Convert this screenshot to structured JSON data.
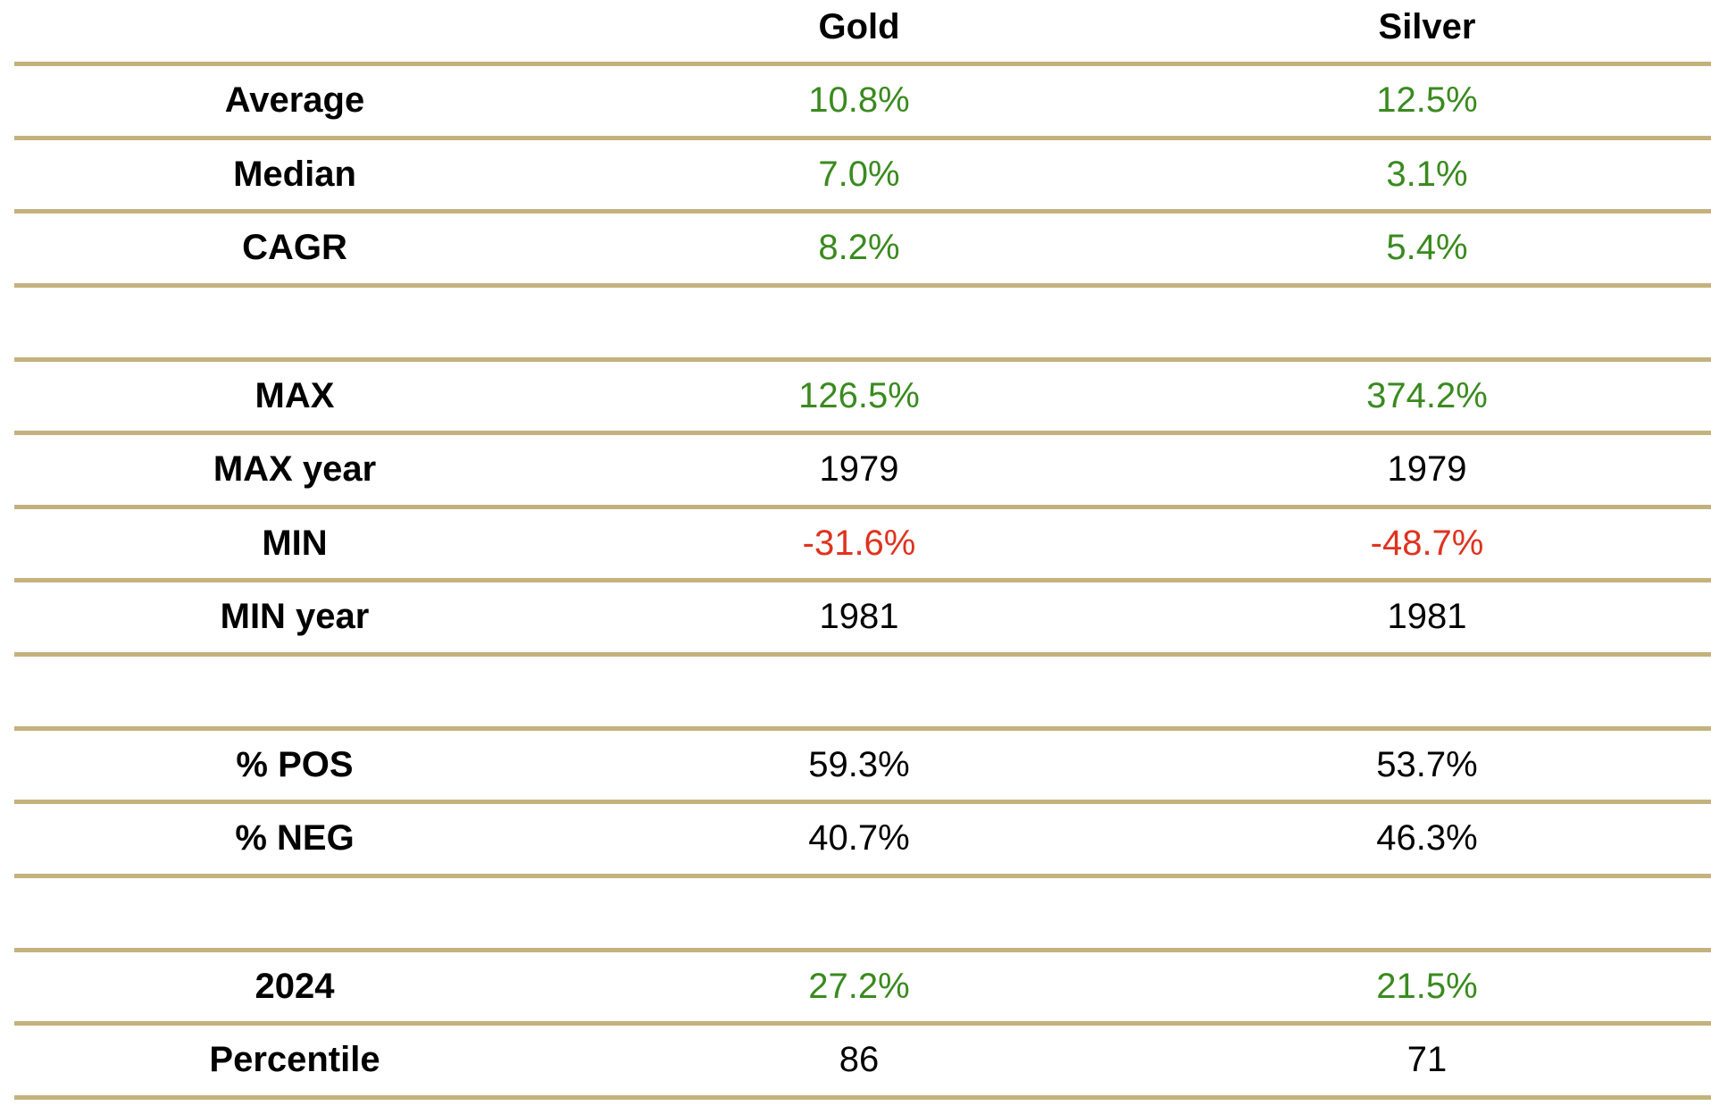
{
  "chart_data": {
    "type": "table",
    "columns": [
      "",
      "Gold",
      "Silver"
    ],
    "groups": [
      [
        {
          "label": "Average",
          "values": [
            "10.8%",
            "12.5%"
          ],
          "tone": "positive"
        },
        {
          "label": "Median",
          "values": [
            "7.0%",
            "3.1%"
          ],
          "tone": "positive"
        },
        {
          "label": "CAGR",
          "values": [
            "8.2%",
            "5.4%"
          ],
          "tone": "positive"
        }
      ],
      [
        {
          "label": "MAX",
          "values": [
            "126.5%",
            "374.2%"
          ],
          "tone": "positive"
        },
        {
          "label": "MAX year",
          "values": [
            "1979",
            "1979"
          ],
          "tone": "neutral"
        },
        {
          "label": "MIN",
          "values": [
            "-31.6%",
            "-48.7%"
          ],
          "tone": "negative"
        },
        {
          "label": "MIN year",
          "values": [
            "1981",
            "1981"
          ],
          "tone": "neutral"
        }
      ],
      [
        {
          "label": "% POS",
          "values": [
            "59.3%",
            "53.7%"
          ],
          "tone": "neutral"
        },
        {
          "label": "% NEG",
          "values": [
            "40.7%",
            "46.3%"
          ],
          "tone": "neutral"
        }
      ],
      [
        {
          "label": "2024",
          "values": [
            "27.2%",
            "21.5%"
          ],
          "tone": "positive"
        },
        {
          "label": "Percentile",
          "values": [
            "86",
            "71"
          ],
          "tone": "neutral"
        }
      ]
    ]
  },
  "colors": {
    "rule": "#c4b27e",
    "positive": "#3a8a1f",
    "negative": "#e0321f",
    "neutral": "#000000"
  }
}
